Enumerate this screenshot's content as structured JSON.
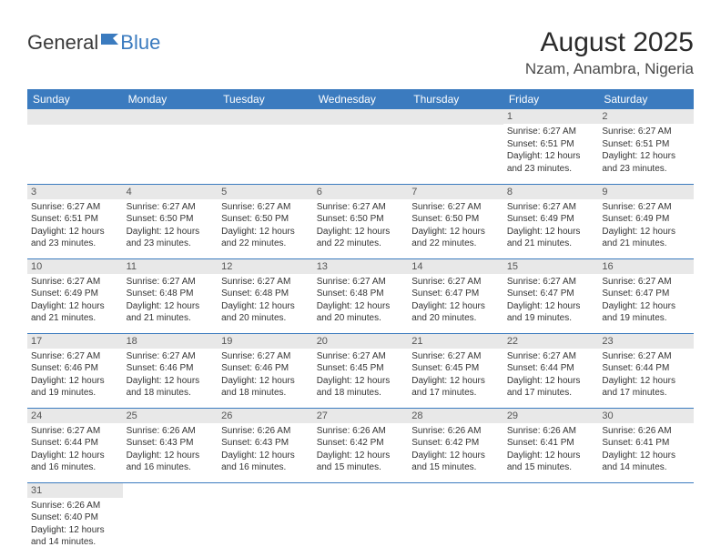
{
  "brand": {
    "part1": "General",
    "part2": "Blue"
  },
  "title": "August 2025",
  "location": "Nzam, Anambra, Nigeria",
  "colors": {
    "header_bg": "#3b7bbf",
    "header_fg": "#ffffff",
    "daynum_bg": "#e8e8e8",
    "row_border": "#3b7bbf",
    "text": "#333333",
    "page_bg": "#ffffff"
  },
  "weekdays": [
    "Sunday",
    "Monday",
    "Tuesday",
    "Wednesday",
    "Thursday",
    "Friday",
    "Saturday"
  ],
  "grid": [
    [
      {
        "n": "",
        "sr": "",
        "ss": "",
        "dl": ""
      },
      {
        "n": "",
        "sr": "",
        "ss": "",
        "dl": ""
      },
      {
        "n": "",
        "sr": "",
        "ss": "",
        "dl": ""
      },
      {
        "n": "",
        "sr": "",
        "ss": "",
        "dl": ""
      },
      {
        "n": "",
        "sr": "",
        "ss": "",
        "dl": ""
      },
      {
        "n": "1",
        "sr": "Sunrise: 6:27 AM",
        "ss": "Sunset: 6:51 PM",
        "dl": "Daylight: 12 hours and 23 minutes."
      },
      {
        "n": "2",
        "sr": "Sunrise: 6:27 AM",
        "ss": "Sunset: 6:51 PM",
        "dl": "Daylight: 12 hours and 23 minutes."
      }
    ],
    [
      {
        "n": "3",
        "sr": "Sunrise: 6:27 AM",
        "ss": "Sunset: 6:51 PM",
        "dl": "Daylight: 12 hours and 23 minutes."
      },
      {
        "n": "4",
        "sr": "Sunrise: 6:27 AM",
        "ss": "Sunset: 6:50 PM",
        "dl": "Daylight: 12 hours and 23 minutes."
      },
      {
        "n": "5",
        "sr": "Sunrise: 6:27 AM",
        "ss": "Sunset: 6:50 PM",
        "dl": "Daylight: 12 hours and 22 minutes."
      },
      {
        "n": "6",
        "sr": "Sunrise: 6:27 AM",
        "ss": "Sunset: 6:50 PM",
        "dl": "Daylight: 12 hours and 22 minutes."
      },
      {
        "n": "7",
        "sr": "Sunrise: 6:27 AM",
        "ss": "Sunset: 6:50 PM",
        "dl": "Daylight: 12 hours and 22 minutes."
      },
      {
        "n": "8",
        "sr": "Sunrise: 6:27 AM",
        "ss": "Sunset: 6:49 PM",
        "dl": "Daylight: 12 hours and 21 minutes."
      },
      {
        "n": "9",
        "sr": "Sunrise: 6:27 AM",
        "ss": "Sunset: 6:49 PM",
        "dl": "Daylight: 12 hours and 21 minutes."
      }
    ],
    [
      {
        "n": "10",
        "sr": "Sunrise: 6:27 AM",
        "ss": "Sunset: 6:49 PM",
        "dl": "Daylight: 12 hours and 21 minutes."
      },
      {
        "n": "11",
        "sr": "Sunrise: 6:27 AM",
        "ss": "Sunset: 6:48 PM",
        "dl": "Daylight: 12 hours and 21 minutes."
      },
      {
        "n": "12",
        "sr": "Sunrise: 6:27 AM",
        "ss": "Sunset: 6:48 PM",
        "dl": "Daylight: 12 hours and 20 minutes."
      },
      {
        "n": "13",
        "sr": "Sunrise: 6:27 AM",
        "ss": "Sunset: 6:48 PM",
        "dl": "Daylight: 12 hours and 20 minutes."
      },
      {
        "n": "14",
        "sr": "Sunrise: 6:27 AM",
        "ss": "Sunset: 6:47 PM",
        "dl": "Daylight: 12 hours and 20 minutes."
      },
      {
        "n": "15",
        "sr": "Sunrise: 6:27 AM",
        "ss": "Sunset: 6:47 PM",
        "dl": "Daylight: 12 hours and 19 minutes."
      },
      {
        "n": "16",
        "sr": "Sunrise: 6:27 AM",
        "ss": "Sunset: 6:47 PM",
        "dl": "Daylight: 12 hours and 19 minutes."
      }
    ],
    [
      {
        "n": "17",
        "sr": "Sunrise: 6:27 AM",
        "ss": "Sunset: 6:46 PM",
        "dl": "Daylight: 12 hours and 19 minutes."
      },
      {
        "n": "18",
        "sr": "Sunrise: 6:27 AM",
        "ss": "Sunset: 6:46 PM",
        "dl": "Daylight: 12 hours and 18 minutes."
      },
      {
        "n": "19",
        "sr": "Sunrise: 6:27 AM",
        "ss": "Sunset: 6:46 PM",
        "dl": "Daylight: 12 hours and 18 minutes."
      },
      {
        "n": "20",
        "sr": "Sunrise: 6:27 AM",
        "ss": "Sunset: 6:45 PM",
        "dl": "Daylight: 12 hours and 18 minutes."
      },
      {
        "n": "21",
        "sr": "Sunrise: 6:27 AM",
        "ss": "Sunset: 6:45 PM",
        "dl": "Daylight: 12 hours and 17 minutes."
      },
      {
        "n": "22",
        "sr": "Sunrise: 6:27 AM",
        "ss": "Sunset: 6:44 PM",
        "dl": "Daylight: 12 hours and 17 minutes."
      },
      {
        "n": "23",
        "sr": "Sunrise: 6:27 AM",
        "ss": "Sunset: 6:44 PM",
        "dl": "Daylight: 12 hours and 17 minutes."
      }
    ],
    [
      {
        "n": "24",
        "sr": "Sunrise: 6:27 AM",
        "ss": "Sunset: 6:44 PM",
        "dl": "Daylight: 12 hours and 16 minutes."
      },
      {
        "n": "25",
        "sr": "Sunrise: 6:26 AM",
        "ss": "Sunset: 6:43 PM",
        "dl": "Daylight: 12 hours and 16 minutes."
      },
      {
        "n": "26",
        "sr": "Sunrise: 6:26 AM",
        "ss": "Sunset: 6:43 PM",
        "dl": "Daylight: 12 hours and 16 minutes."
      },
      {
        "n": "27",
        "sr": "Sunrise: 6:26 AM",
        "ss": "Sunset: 6:42 PM",
        "dl": "Daylight: 12 hours and 15 minutes."
      },
      {
        "n": "28",
        "sr": "Sunrise: 6:26 AM",
        "ss": "Sunset: 6:42 PM",
        "dl": "Daylight: 12 hours and 15 minutes."
      },
      {
        "n": "29",
        "sr": "Sunrise: 6:26 AM",
        "ss": "Sunset: 6:41 PM",
        "dl": "Daylight: 12 hours and 15 minutes."
      },
      {
        "n": "30",
        "sr": "Sunrise: 6:26 AM",
        "ss": "Sunset: 6:41 PM",
        "dl": "Daylight: 12 hours and 14 minutes."
      }
    ],
    [
      {
        "n": "31",
        "sr": "Sunrise: 6:26 AM",
        "ss": "Sunset: 6:40 PM",
        "dl": "Daylight: 12 hours and 14 minutes."
      },
      {
        "n": "",
        "sr": "",
        "ss": "",
        "dl": ""
      },
      {
        "n": "",
        "sr": "",
        "ss": "",
        "dl": ""
      },
      {
        "n": "",
        "sr": "",
        "ss": "",
        "dl": ""
      },
      {
        "n": "",
        "sr": "",
        "ss": "",
        "dl": ""
      },
      {
        "n": "",
        "sr": "",
        "ss": "",
        "dl": ""
      },
      {
        "n": "",
        "sr": "",
        "ss": "",
        "dl": ""
      }
    ]
  ]
}
